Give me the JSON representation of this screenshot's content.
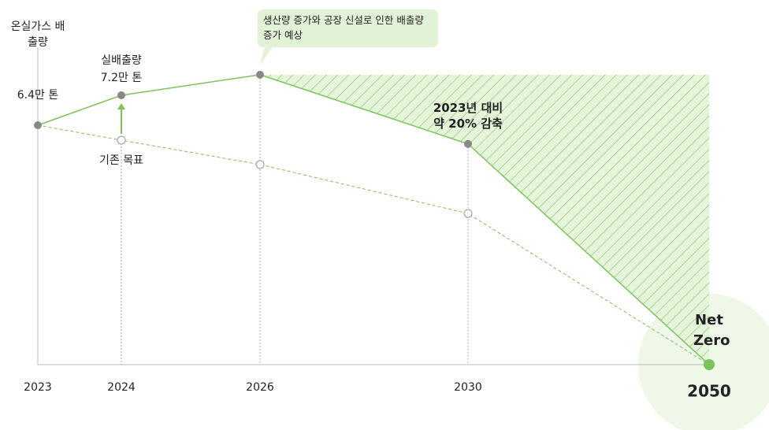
{
  "chart_data": {
    "type": "line",
    "y_label": "온실가스 배출량",
    "categories": [
      "2023",
      "2024",
      "2026",
      "2030",
      "2050"
    ],
    "series": [
      {
        "name": "실배출량",
        "color": "#7cc35a",
        "values": [
          6.4,
          7.2,
          7.75,
          5.9,
          0
        ],
        "value_labels": [
          "6.4만 톤",
          "7.2만 톤",
          null,
          null,
          null
        ]
      },
      {
        "name": "기존 목표",
        "color": "#7cc35a",
        "dashed": true,
        "values": [
          6.4,
          6.0,
          5.35,
          4.04,
          0
        ]
      }
    ],
    "ylim": [
      0,
      8
    ],
    "annotations": [
      "생산량 증가와 공장 신설로 인한 배출량 증가 예상",
      "2023년 대비 약 20% 감축",
      "Net Zero"
    ]
  }
}
